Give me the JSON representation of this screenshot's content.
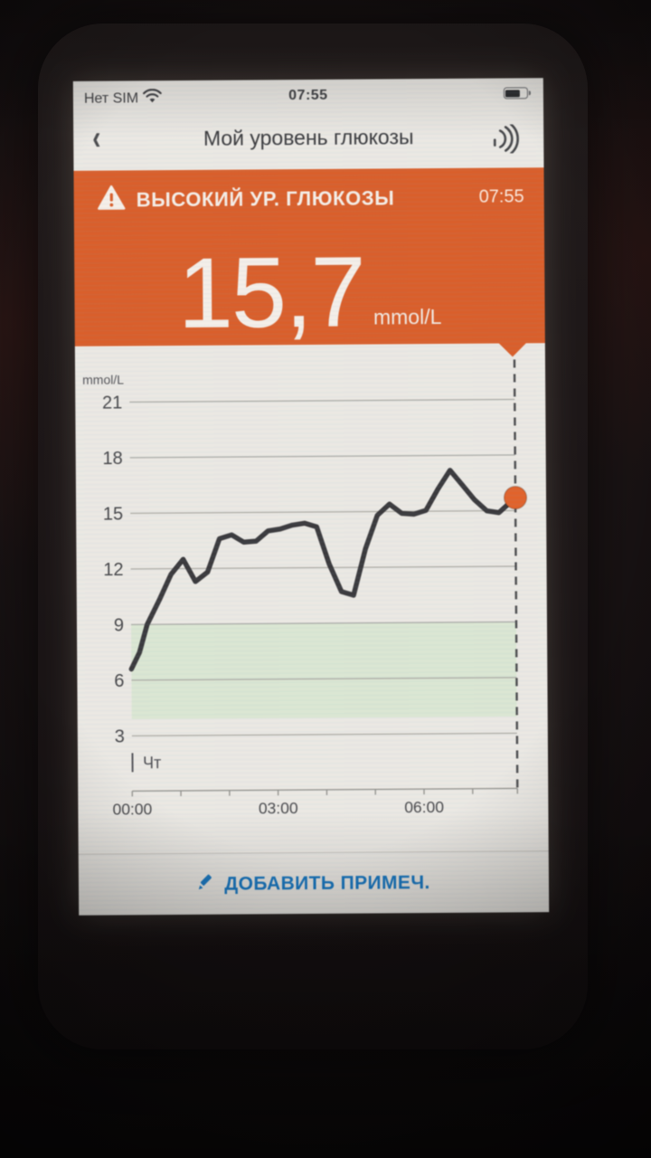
{
  "status_bar": {
    "carrier": "Нет SIM",
    "time": "07:55",
    "battery_percent": 72
  },
  "nav": {
    "back_glyph": "‹",
    "title": "Мой уровень глюкозы"
  },
  "alert": {
    "title": "ВЫСОКИЙ УР. ГЛЮКОЗЫ",
    "time": "07:55",
    "value": "15,7",
    "unit": "mmol/L",
    "banner_color": "#d95f2b"
  },
  "chart_data": {
    "type": "line",
    "ylabel": "mmol/L",
    "yticks": [
      21,
      18,
      15,
      12,
      9,
      6,
      3
    ],
    "ylim": [
      2,
      22
    ],
    "xlim_hours": [
      0,
      7.92
    ],
    "xticks": [
      {
        "hour": 0,
        "label": "00:00"
      },
      {
        "hour": 3,
        "label": "03:00"
      },
      {
        "hour": 6,
        "label": "06:00"
      }
    ],
    "xticks_minor_hours": [
      0,
      1,
      2,
      3,
      4,
      5,
      6,
      7
    ],
    "day_label": "Чт",
    "target_range": [
      3.9,
      9.0
    ],
    "target_range_color": "#dbe6d3",
    "grid_color": "#abaaa5",
    "line_color": "#3b3a3d",
    "dashed_line_color": "#4b4b4d",
    "series": [
      {
        "name": "glucose-mmol-per-L",
        "points": [
          [
            0.0,
            6.6
          ],
          [
            0.17,
            7.5
          ],
          [
            0.33,
            9.0
          ],
          [
            0.58,
            10.3
          ],
          [
            0.83,
            11.7
          ],
          [
            1.08,
            12.5
          ],
          [
            1.33,
            11.3
          ],
          [
            1.58,
            11.8
          ],
          [
            1.83,
            13.6
          ],
          [
            2.08,
            13.8
          ],
          [
            2.33,
            13.4
          ],
          [
            2.58,
            13.45
          ],
          [
            2.83,
            14.0
          ],
          [
            3.08,
            14.1
          ],
          [
            3.33,
            14.3
          ],
          [
            3.58,
            14.4
          ],
          [
            3.83,
            14.2
          ],
          [
            4.08,
            12.2
          ],
          [
            4.33,
            10.7
          ],
          [
            4.58,
            10.5
          ],
          [
            4.83,
            13.0
          ],
          [
            5.08,
            14.8
          ],
          [
            5.33,
            15.4
          ],
          [
            5.58,
            14.9
          ],
          [
            5.83,
            14.85
          ],
          [
            6.08,
            15.05
          ],
          [
            6.33,
            16.2
          ],
          [
            6.58,
            17.2
          ],
          [
            6.83,
            16.4
          ],
          [
            7.08,
            15.6
          ],
          [
            7.33,
            15.0
          ],
          [
            7.58,
            14.9
          ],
          [
            7.92,
            15.7
          ]
        ]
      }
    ],
    "current_point": {
      "time": "07:55",
      "hour": 7.92,
      "value": 15.7,
      "marker_color": "#e0632c"
    }
  },
  "footer": {
    "add_note_label": "ДОБАВИТЬ ПРИМЕЧ."
  }
}
